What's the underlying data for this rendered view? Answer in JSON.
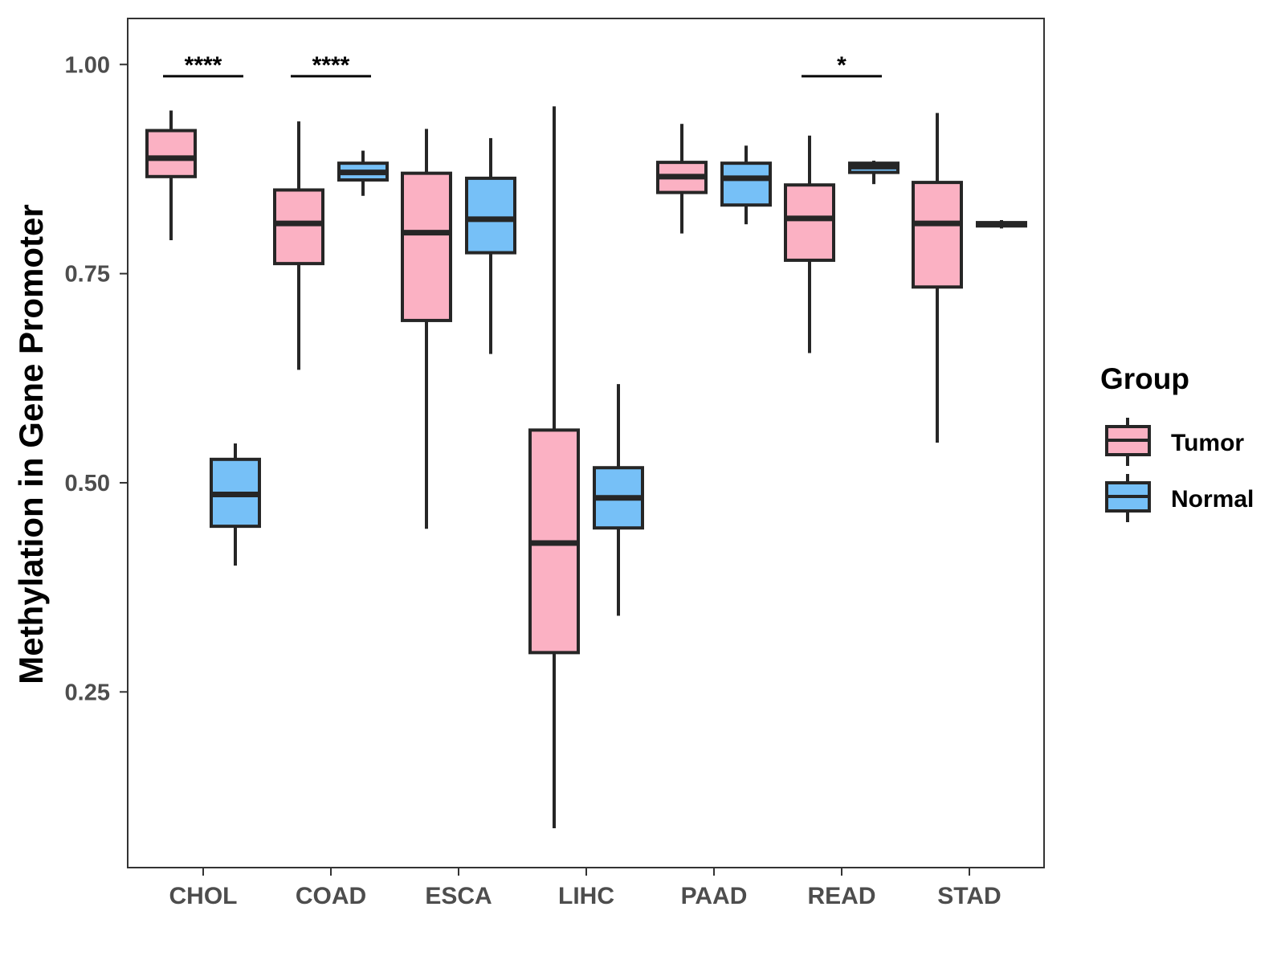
{
  "chart_data": {
    "type": "box",
    "ylabel": "Methylation in Gene Promoter",
    "xlabel": "",
    "ylim": [
      0.04,
      1.055
    ],
    "yticks": [
      0.25,
      0.5,
      0.75,
      1.0
    ],
    "ytick_labels": [
      "0.25",
      "0.50",
      "0.75",
      "1.00"
    ],
    "categories": [
      "CHOL",
      "COAD",
      "ESCA",
      "LIHC",
      "PAAD",
      "READ",
      "STAD"
    ],
    "legend": {
      "title": "Group",
      "position": "right",
      "entries": [
        {
          "name": "Tumor",
          "color": "#FBB1C3"
        },
        {
          "name": "Normal",
          "color": "#76C0F7"
        }
      ]
    },
    "series": [
      {
        "name": "Tumor",
        "color": "#FBB1C3",
        "boxes": [
          {
            "category": "CHOL",
            "min": 0.79,
            "q1": 0.866,
            "median": 0.888,
            "q3": 0.921,
            "max": 0.945
          },
          {
            "category": "COAD",
            "min": 0.635,
            "q1": 0.762,
            "median": 0.81,
            "q3": 0.85,
            "max": 0.932
          },
          {
            "category": "ESCA",
            "min": 0.445,
            "q1": 0.694,
            "median": 0.799,
            "q3": 0.87,
            "max": 0.923
          },
          {
            "category": "LIHC",
            "min": 0.087,
            "q1": 0.297,
            "median": 0.428,
            "q3": 0.563,
            "max": 0.95
          },
          {
            "category": "PAAD",
            "min": 0.798,
            "q1": 0.847,
            "median": 0.866,
            "q3": 0.883,
            "max": 0.929
          },
          {
            "category": "READ",
            "min": 0.655,
            "q1": 0.766,
            "median": 0.816,
            "q3": 0.856,
            "max": 0.915
          },
          {
            "category": "STAD",
            "min": 0.548,
            "q1": 0.734,
            "median": 0.81,
            "q3": 0.859,
            "max": 0.942
          }
        ]
      },
      {
        "name": "Normal",
        "color": "#76C0F7",
        "boxes": [
          {
            "category": "CHOL",
            "min": 0.401,
            "q1": 0.448,
            "median": 0.486,
            "q3": 0.528,
            "max": 0.547
          },
          {
            "category": "COAD",
            "min": 0.843,
            "q1": 0.862,
            "median": 0.871,
            "q3": 0.882,
            "max": 0.897
          },
          {
            "category": "ESCA",
            "min": 0.654,
            "q1": 0.775,
            "median": 0.815,
            "q3": 0.864,
            "max": 0.912
          },
          {
            "category": "LIHC",
            "min": 0.341,
            "q1": 0.446,
            "median": 0.482,
            "q3": 0.518,
            "max": 0.618
          },
          {
            "category": "PAAD",
            "min": 0.809,
            "q1": 0.832,
            "median": 0.864,
            "q3": 0.882,
            "max": 0.903
          },
          {
            "category": "READ",
            "min": 0.857,
            "q1": 0.871,
            "median": 0.878,
            "q3": 0.882,
            "max": 0.885
          },
          {
            "category": "STAD",
            "min": 0.804,
            "q1": 0.807,
            "median": 0.809,
            "q3": 0.811,
            "max": 0.814
          }
        ]
      }
    ],
    "annotations": [
      {
        "category": "CHOL",
        "label": "****",
        "y": 0.986
      },
      {
        "category": "COAD",
        "label": "****",
        "y": 0.986
      },
      {
        "category": "READ",
        "label": "*",
        "y": 0.986
      }
    ]
  }
}
